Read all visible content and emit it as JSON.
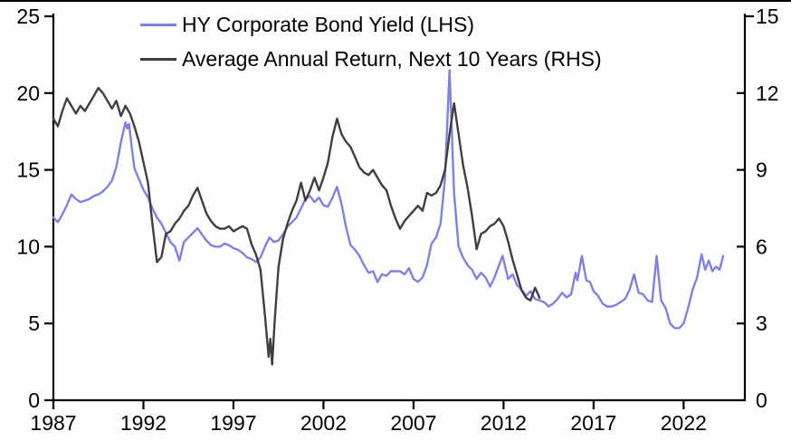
{
  "chart_data": {
    "type": "line",
    "title": "",
    "legend_position": "top-left",
    "grid": false,
    "x_axis": {
      "ticks": [
        1987,
        1992,
        1997,
        2002,
        2007,
        2012,
        2017,
        2022
      ],
      "range": [
        1987,
        2025.4
      ]
    },
    "left_axis": {
      "ticks": [
        0,
        5,
        10,
        15,
        20,
        25
      ],
      "range": [
        0,
        25
      ]
    },
    "right_axis": {
      "ticks": [
        0,
        3,
        6,
        9,
        12,
        15
      ],
      "range": [
        0,
        15
      ]
    },
    "series": [
      {
        "name": "HY Corporate Bond Yield (LHS)",
        "axis": "left",
        "color": "#7d80e6",
        "points": [
          [
            1987.0,
            11.9
          ],
          [
            1987.25,
            11.6
          ],
          [
            1987.5,
            12.1
          ],
          [
            1987.75,
            12.7
          ],
          [
            1988.0,
            13.4
          ],
          [
            1988.25,
            13.1
          ],
          [
            1988.5,
            12.9
          ],
          [
            1988.75,
            13.0
          ],
          [
            1989.0,
            13.1
          ],
          [
            1989.25,
            13.3
          ],
          [
            1989.5,
            13.4
          ],
          [
            1989.75,
            13.6
          ],
          [
            1990.0,
            13.9
          ],
          [
            1990.25,
            14.3
          ],
          [
            1990.5,
            15.2
          ],
          [
            1990.75,
            16.8
          ],
          [
            1991.0,
            18.1
          ],
          [
            1991.1,
            17.7
          ],
          [
            1991.2,
            18.0
          ],
          [
            1991.35,
            16.5
          ],
          [
            1991.5,
            15.1
          ],
          [
            1991.75,
            14.4
          ],
          [
            1992.0,
            13.7
          ],
          [
            1992.25,
            13.2
          ],
          [
            1992.5,
            12.5
          ],
          [
            1992.75,
            11.9
          ],
          [
            1993.0,
            11.5
          ],
          [
            1993.25,
            10.9
          ],
          [
            1993.5,
            10.3
          ],
          [
            1993.75,
            10.0
          ],
          [
            1994.0,
            9.1
          ],
          [
            1994.25,
            10.3
          ],
          [
            1994.5,
            10.6
          ],
          [
            1994.75,
            10.9
          ],
          [
            1995.0,
            11.2
          ],
          [
            1995.25,
            10.8
          ],
          [
            1995.5,
            10.4
          ],
          [
            1995.75,
            10.1
          ],
          [
            1996.0,
            10.0
          ],
          [
            1996.25,
            10.0
          ],
          [
            1996.5,
            10.2
          ],
          [
            1996.75,
            10.1
          ],
          [
            1997.0,
            9.9
          ],
          [
            1997.25,
            9.8
          ],
          [
            1997.5,
            9.6
          ],
          [
            1997.75,
            9.3
          ],
          [
            1998.0,
            9.2
          ],
          [
            1998.25,
            9.0
          ],
          [
            1998.5,
            9.3
          ],
          [
            1998.75,
            10.0
          ],
          [
            1999.0,
            10.6
          ],
          [
            1999.25,
            10.3
          ],
          [
            1999.5,
            10.4
          ],
          [
            1999.75,
            10.8
          ],
          [
            2000.0,
            11.3
          ],
          [
            2000.25,
            11.6
          ],
          [
            2000.5,
            11.9
          ],
          [
            2000.75,
            12.5
          ],
          [
            2001.0,
            13.1
          ],
          [
            2001.25,
            13.3
          ],
          [
            2001.5,
            12.9
          ],
          [
            2001.75,
            13.2
          ],
          [
            2002.0,
            12.7
          ],
          [
            2002.25,
            12.6
          ],
          [
            2002.5,
            13.2
          ],
          [
            2002.75,
            13.9
          ],
          [
            2003.0,
            12.8
          ],
          [
            2003.25,
            11.3
          ],
          [
            2003.5,
            10.1
          ],
          [
            2003.75,
            9.8
          ],
          [
            2004.0,
            9.4
          ],
          [
            2004.25,
            8.8
          ],
          [
            2004.5,
            8.3
          ],
          [
            2004.75,
            8.4
          ],
          [
            2005.0,
            7.7
          ],
          [
            2005.25,
            8.2
          ],
          [
            2005.5,
            8.1
          ],
          [
            2005.75,
            8.4
          ],
          [
            2006.0,
            8.4
          ],
          [
            2006.25,
            8.4
          ],
          [
            2006.5,
            8.2
          ],
          [
            2006.75,
            8.6
          ],
          [
            2007.0,
            7.9
          ],
          [
            2007.25,
            7.7
          ],
          [
            2007.5,
            8.0
          ],
          [
            2007.75,
            8.8
          ],
          [
            2008.0,
            10.2
          ],
          [
            2008.25,
            10.6
          ],
          [
            2008.5,
            11.5
          ],
          [
            2008.75,
            14.5
          ],
          [
            2009.0,
            21.5
          ],
          [
            2009.25,
            13.5
          ],
          [
            2009.5,
            10.0
          ],
          [
            2009.75,
            9.3
          ],
          [
            2010.0,
            8.8
          ],
          [
            2010.25,
            8.5
          ],
          [
            2010.5,
            7.9
          ],
          [
            2010.75,
            8.3
          ],
          [
            2011.0,
            8.0
          ],
          [
            2011.25,
            7.4
          ],
          [
            2011.5,
            8.0
          ],
          [
            2011.75,
            8.8
          ],
          [
            2011.95,
            9.4
          ],
          [
            2012.25,
            7.9
          ],
          [
            2012.5,
            8.2
          ],
          [
            2012.75,
            7.5
          ],
          [
            2013.0,
            7.2
          ],
          [
            2013.25,
            6.8
          ],
          [
            2013.5,
            7.1
          ],
          [
            2013.75,
            6.6
          ],
          [
            2014.0,
            6.5
          ],
          [
            2014.25,
            6.4
          ],
          [
            2014.5,
            6.1
          ],
          [
            2014.75,
            6.3
          ],
          [
            2015.0,
            6.6
          ],
          [
            2015.25,
            7.0
          ],
          [
            2015.5,
            6.7
          ],
          [
            2015.75,
            6.9
          ],
          [
            2016.0,
            8.3
          ],
          [
            2016.1,
            7.8
          ],
          [
            2016.35,
            9.4
          ],
          [
            2016.6,
            7.8
          ],
          [
            2016.8,
            7.7
          ],
          [
            2017.0,
            7.1
          ],
          [
            2017.25,
            6.8
          ],
          [
            2017.5,
            6.3
          ],
          [
            2017.75,
            6.1
          ],
          [
            2018.0,
            6.1
          ],
          [
            2018.25,
            6.2
          ],
          [
            2018.5,
            6.4
          ],
          [
            2018.75,
            6.6
          ],
          [
            2019.0,
            7.2
          ],
          [
            2019.25,
            8.2
          ],
          [
            2019.5,
            7.0
          ],
          [
            2019.75,
            6.9
          ],
          [
            2020.0,
            6.5
          ],
          [
            2020.25,
            6.4
          ],
          [
            2020.5,
            9.4
          ],
          [
            2020.75,
            6.5
          ],
          [
            2021.0,
            6.0
          ],
          [
            2021.25,
            5.0
          ],
          [
            2021.5,
            4.7
          ],
          [
            2021.75,
            4.7
          ],
          [
            2022.0,
            5.0
          ],
          [
            2022.25,
            6.0
          ],
          [
            2022.5,
            7.2
          ],
          [
            2022.75,
            8.0
          ],
          [
            2023.0,
            9.5
          ],
          [
            2023.2,
            8.5
          ],
          [
            2023.4,
            9.1
          ],
          [
            2023.6,
            8.4
          ],
          [
            2023.8,
            8.7
          ],
          [
            2024.0,
            8.5
          ],
          [
            2024.2,
            9.4
          ]
        ]
      },
      {
        "name": "Average Annual Return, Next 10 Years (RHS)",
        "axis": "right",
        "color": "#3f3f3f",
        "points": [
          [
            1987.0,
            11.0
          ],
          [
            1987.25,
            10.7
          ],
          [
            1987.5,
            11.3
          ],
          [
            1987.75,
            11.8
          ],
          [
            1988.0,
            11.5
          ],
          [
            1988.25,
            11.2
          ],
          [
            1988.5,
            11.5
          ],
          [
            1988.75,
            11.3
          ],
          [
            1989.0,
            11.6
          ],
          [
            1989.25,
            11.9
          ],
          [
            1989.5,
            12.2
          ],
          [
            1989.75,
            12.0
          ],
          [
            1990.0,
            11.7
          ],
          [
            1990.25,
            11.4
          ],
          [
            1990.5,
            11.7
          ],
          [
            1990.75,
            11.1
          ],
          [
            1991.0,
            11.5
          ],
          [
            1991.25,
            11.2
          ],
          [
            1991.5,
            10.7
          ],
          [
            1991.75,
            10.1
          ],
          [
            1992.0,
            9.3
          ],
          [
            1992.25,
            8.5
          ],
          [
            1992.5,
            6.9
          ],
          [
            1992.75,
            5.4
          ],
          [
            1993.0,
            5.6
          ],
          [
            1993.25,
            6.5
          ],
          [
            1993.5,
            6.6
          ],
          [
            1993.75,
            6.9
          ],
          [
            1994.0,
            7.1
          ],
          [
            1994.25,
            7.4
          ],
          [
            1994.5,
            7.6
          ],
          [
            1994.75,
            8.0
          ],
          [
            1995.0,
            8.3
          ],
          [
            1995.25,
            7.8
          ],
          [
            1995.5,
            7.3
          ],
          [
            1995.75,
            7.0
          ],
          [
            1996.0,
            6.8
          ],
          [
            1996.25,
            6.7
          ],
          [
            1996.5,
            6.7
          ],
          [
            1996.75,
            6.8
          ],
          [
            1997.0,
            6.6
          ],
          [
            1997.25,
            6.7
          ],
          [
            1997.5,
            6.8
          ],
          [
            1997.75,
            6.7
          ],
          [
            1998.0,
            6.1
          ],
          [
            1998.25,
            5.7
          ],
          [
            1998.5,
            5.1
          ],
          [
            1998.75,
            3.3
          ],
          [
            1998.95,
            1.7
          ],
          [
            1999.05,
            2.4
          ],
          [
            1999.15,
            1.4
          ],
          [
            1999.3,
            3.2
          ],
          [
            1999.5,
            5.2
          ],
          [
            1999.75,
            6.3
          ],
          [
            2000.0,
            6.9
          ],
          [
            2000.25,
            7.4
          ],
          [
            2000.5,
            7.8
          ],
          [
            2000.75,
            8.5
          ],
          [
            2001.0,
            7.8
          ],
          [
            2001.25,
            8.2
          ],
          [
            2001.5,
            8.7
          ],
          [
            2001.75,
            8.2
          ],
          [
            2002.0,
            8.7
          ],
          [
            2002.25,
            9.3
          ],
          [
            2002.5,
            10.3
          ],
          [
            2002.75,
            11.0
          ],
          [
            2003.0,
            10.4
          ],
          [
            2003.25,
            10.1
          ],
          [
            2003.5,
            9.9
          ],
          [
            2003.75,
            9.5
          ],
          [
            2004.0,
            9.1
          ],
          [
            2004.25,
            8.9
          ],
          [
            2004.5,
            8.8
          ],
          [
            2004.75,
            9.0
          ],
          [
            2005.0,
            8.7
          ],
          [
            2005.25,
            8.4
          ],
          [
            2005.5,
            8.2
          ],
          [
            2005.75,
            7.6
          ],
          [
            2006.0,
            7.1
          ],
          [
            2006.25,
            6.7
          ],
          [
            2006.5,
            7.0
          ],
          [
            2006.75,
            7.2
          ],
          [
            2007.0,
            7.4
          ],
          [
            2007.25,
            7.6
          ],
          [
            2007.5,
            7.4
          ],
          [
            2007.75,
            8.1
          ],
          [
            2008.0,
            8.0
          ],
          [
            2008.25,
            8.1
          ],
          [
            2008.5,
            8.4
          ],
          [
            2008.75,
            9.0
          ],
          [
            2009.0,
            10.4
          ],
          [
            2009.25,
            11.6
          ],
          [
            2009.5,
            10.4
          ],
          [
            2009.75,
            9.2
          ],
          [
            2010.0,
            8.3
          ],
          [
            2010.25,
            7.2
          ],
          [
            2010.5,
            5.9
          ],
          [
            2010.75,
            6.5
          ],
          [
            2011.0,
            6.6
          ],
          [
            2011.25,
            6.8
          ],
          [
            2011.5,
            6.9
          ],
          [
            2011.75,
            7.1
          ],
          [
            2012.0,
            6.8
          ],
          [
            2012.25,
            6.2
          ],
          [
            2012.5,
            5.5
          ],
          [
            2012.75,
            4.9
          ],
          [
            2013.0,
            4.3
          ],
          [
            2013.25,
            4.0
          ],
          [
            2013.5,
            3.9
          ],
          [
            2013.75,
            4.4
          ],
          [
            2014.0,
            4.0
          ]
        ]
      }
    ]
  },
  "legend": {
    "items": [
      {
        "label": "HY Corporate Bond Yield (LHS)",
        "color": "#7d80e6"
      },
      {
        "label": "Average Annual Return, Next 10 Years (RHS)",
        "color": "#3f3f3f"
      }
    ]
  },
  "colors": {
    "axis": "#000000",
    "text": "#000000",
    "background": "#ffffff",
    "top_border": "#000000"
  }
}
